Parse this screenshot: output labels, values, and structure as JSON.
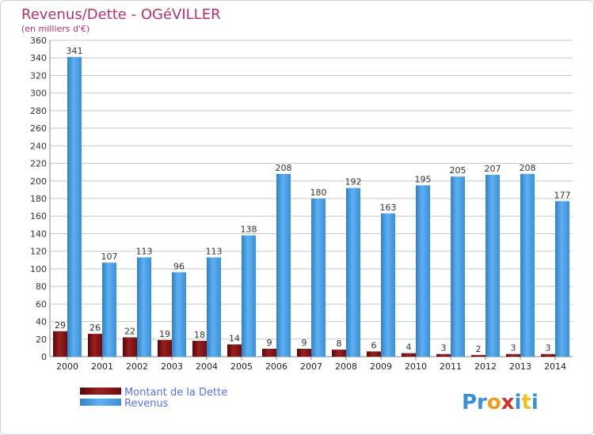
{
  "chart_data": {
    "type": "bar",
    "title": "Revenus/Dette - OGéVILLER",
    "subtitle": "(en milliers d'€)",
    "categories": [
      "2000",
      "2001",
      "2002",
      "2003",
      "2004",
      "2005",
      "2006",
      "2007",
      "2008",
      "2009",
      "2010",
      "2011",
      "2012",
      "2013",
      "2014"
    ],
    "series": [
      {
        "name": "Montant de la Dette",
        "color": "#7a1010",
        "values": [
          29,
          26,
          22,
          19,
          18,
          14,
          9,
          9,
          8,
          6,
          4,
          3,
          2,
          3,
          3
        ]
      },
      {
        "name": "Revenus",
        "color": "#4a9fe6",
        "values": [
          341,
          107,
          113,
          96,
          113,
          138,
          208,
          180,
          192,
          163,
          195,
          205,
          207,
          208,
          177
        ]
      }
    ],
    "ylim": [
      0,
      360
    ],
    "yticks": [
      0,
      20,
      40,
      60,
      80,
      100,
      120,
      140,
      160,
      180,
      200,
      220,
      240,
      260,
      280,
      300,
      320,
      340,
      360
    ],
    "grid": true,
    "legend_position": "bottom-left"
  },
  "logo": {
    "text": "Proxiti"
  }
}
